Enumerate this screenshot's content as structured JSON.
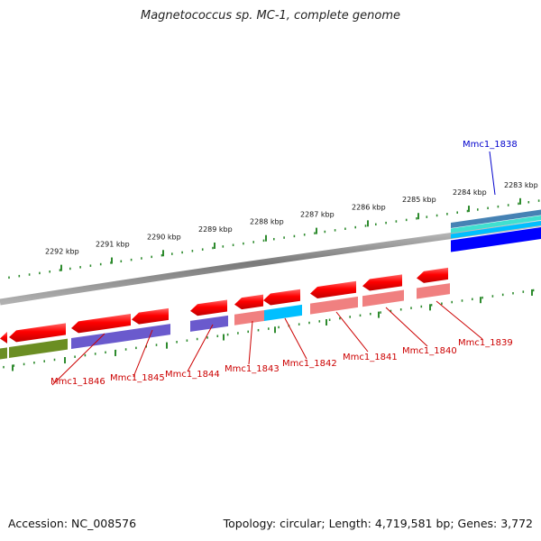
{
  "title": "Magnetococcus sp. MC-1, complete genome",
  "footer": {
    "accession": "Accession: NC_008576",
    "summary": "Topology: circular; Length: 4,719,581 bp; Genes: 3,772"
  },
  "colors": {
    "forward_cds": "#ff0000",
    "reverse_cds": "#ff0000",
    "label_red": "#cc0000",
    "label_blue": "#0000cc",
    "tick_green": "#2e8b2e",
    "olive": "#6b8e23",
    "purple": "#6a5acd",
    "pink": "#f08080",
    "cyan": "#00bfff",
    "blue": "#0000ff",
    "steel": "#4682b4"
  },
  "ticks": [
    "2292 kbp",
    "2291 kbp",
    "2290 kbp",
    "2289 kbp",
    "2288 kbp",
    "2287 kbp",
    "2286 kbp",
    "2285 kbp",
    "2284 kbp",
    "2283 kbp"
  ],
  "genes": [
    {
      "name": "Mmc1_1846",
      "color": "label_red"
    },
    {
      "name": "Mmc1_1845",
      "color": "label_red"
    },
    {
      "name": "Mmc1_1844",
      "color": "label_red"
    },
    {
      "name": "Mmc1_1843",
      "color": "label_red"
    },
    {
      "name": "Mmc1_1842",
      "color": "label_red"
    },
    {
      "name": "Mmc1_1841",
      "color": "label_red"
    },
    {
      "name": "Mmc1_1840",
      "color": "label_red"
    },
    {
      "name": "Mmc1_1839",
      "color": "label_red"
    },
    {
      "name": "Mmc1_1838",
      "color": "label_blue"
    }
  ]
}
